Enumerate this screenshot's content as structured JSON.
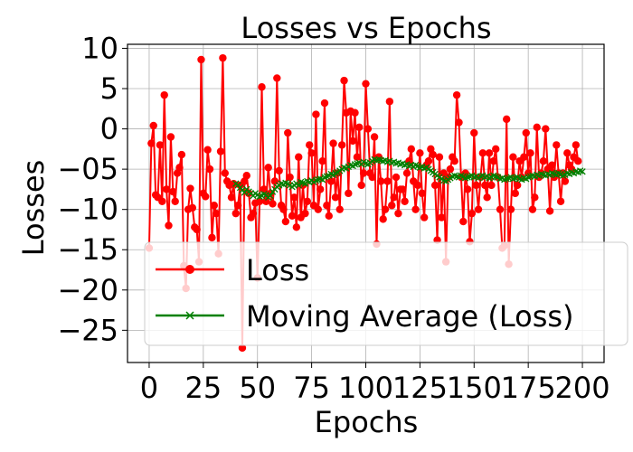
{
  "chart_data": {
    "type": "line",
    "title": "Losses vs Epochs",
    "xlabel": "Epochs",
    "ylabel": "Losses",
    "xlim": [
      -10,
      210
    ],
    "ylim": [
      -29,
      10.5
    ],
    "xticks": [
      0,
      25,
      50,
      75,
      100,
      125,
      150,
      175,
      200
    ],
    "xtick_labels": [
      "0",
      "25",
      "50",
      "75",
      "100",
      "125",
      "150",
      "175",
      "200"
    ],
    "yticks": [
      10,
      5,
      0,
      -5,
      -10,
      -15,
      -20,
      -25
    ],
    "ytick_labels": [
      "10",
      "5",
      "0",
      "−05",
      "−10",
      "−15",
      "−20",
      "−25"
    ],
    "grid": true,
    "legend_position": "lower-right",
    "colors": {
      "loss": "#ff0000",
      "moving_average": "#008000",
      "grid": "#b0b0b0"
    },
    "series": [
      {
        "name": "Loss",
        "marker": "circle",
        "x_start": 0,
        "values": [
          -14.8,
          -1.8,
          0.4,
          -8.2,
          -8.5,
          -2.0,
          -9.0,
          4.2,
          -7.5,
          -12.0,
          -1.0,
          -7.8,
          -9.0,
          -5.5,
          -4.8,
          -3.2,
          -17.0,
          -19.8,
          -10.0,
          -7.4,
          -9.8,
          -12.2,
          -12.5,
          -16.5,
          8.6,
          -8.0,
          -8.4,
          -2.6,
          -5.0,
          -13.5,
          -9.5,
          -10.5,
          -15.5,
          -2.8,
          8.8,
          -5.5,
          -6.5,
          -7.0,
          -8.5,
          -6.8,
          -10.5,
          -9.5,
          -7.0,
          -27.2,
          -6.5,
          -5.8,
          -8.0,
          -11.0,
          -10.5,
          -9.2,
          -18.5,
          -9.0,
          5.2,
          -7.5,
          -9.0,
          -4.8,
          -8.0,
          -9.3,
          -6.5,
          6.3,
          -5.2,
          -9.5,
          -10.0,
          -11.5,
          -0.5,
          -6.0,
          -10.8,
          -8.5,
          -12.2,
          -3.5,
          -11.0,
          -7.0,
          -10.5,
          -9.0,
          -2.0,
          -3.0,
          -9.5,
          1.8,
          -10.0,
          -7.5,
          -4.0,
          3.2,
          -9.5,
          -10.8,
          -6.5,
          -1.8,
          -8.5,
          -5.5,
          -10.0,
          -2.0,
          6.0,
          2.0,
          -8.0,
          2.2,
          -1.5,
          2.0,
          -3.5,
          0.2,
          -7.0,
          -5.5,
          5.6,
          0.0,
          -5.5,
          -6.0,
          -1.0,
          -14.3,
          -3.5,
          -6.5,
          -11.2,
          -10.0,
          -6.5,
          3.4,
          -9.5,
          -8.5,
          -6.0,
          -10.5,
          -7.5,
          -7.5,
          -9.0,
          -5.5,
          -4.0,
          -2.5,
          -6.5,
          -10.0,
          -7.0,
          -3.0,
          -8.0,
          -11.0,
          -4.5,
          -4.0,
          -2.5,
          -3.2,
          -7.0,
          -13.8,
          -3.5,
          -11.0,
          -5.5,
          -16.5,
          -6.0,
          -5.0,
          -3.5,
          -4.0,
          4.2,
          0.8,
          -6.0,
          -11.5,
          -5.5,
          -7.5,
          -14.0,
          -10.5,
          -0.5,
          -7.0,
          -10.0,
          -6.0,
          -3.0,
          -7.0,
          -8.5,
          -3.0,
          -7.0,
          -4.0,
          -2.5,
          -6.0,
          -10.0,
          -14.8,
          -14.5,
          1.2,
          -16.8,
          -10.0,
          -3.5,
          -8.0,
          -7.0,
          -4.0,
          -6.0,
          -3.5,
          -0.5,
          -5.5,
          -3.0,
          -10.0,
          -8.5,
          0.2,
          -6.0,
          -5.5,
          -4.0,
          0.0,
          -5.0,
          -10.2,
          -4.5,
          -6.0,
          -2.0,
          -5.5,
          -9.0,
          -5.5,
          -6.5,
          -3.0,
          -4.5,
          -5.0,
          -3.5,
          -2.0,
          -4.0
        ]
      },
      {
        "name": "Moving Average (Loss)",
        "marker": "x",
        "x_start": 40,
        "values": [
          -6.8,
          -7.0,
          -7.3,
          -7.6,
          -7.9,
          -7.5,
          -7.8,
          -8.0,
          -8.3,
          -8.0,
          -8.2,
          -8.4,
          -8.3,
          -8.1,
          -8.2,
          -8.5,
          -8.3,
          -7.8,
          -7.5,
          -7.2,
          -7.0,
          -6.8,
          -6.9,
          -6.7,
          -6.8,
          -7.0,
          -7.2,
          -7.0,
          -6.8,
          -7.0,
          -6.6,
          -6.7,
          -6.8,
          -6.5,
          -6.6,
          -6.4,
          -6.6,
          -6.4,
          -6.3,
          -6.2,
          -6.3,
          -6.0,
          -5.9,
          -5.8,
          -5.6,
          -5.7,
          -5.5,
          -5.4,
          -5.2,
          -5.0,
          -4.8,
          -4.9,
          -4.7,
          -4.5,
          -4.6,
          -4.4,
          -4.3,
          -4.2,
          -4.4,
          -4.1,
          -4.3,
          -4.4,
          -4.2,
          -4.0,
          -3.8,
          -3.9,
          -3.8,
          -3.9,
          -4.0,
          -3.9,
          -4.1,
          -4.0,
          -4.2,
          -4.1,
          -4.3,
          -4.2,
          -4.4,
          -4.3,
          -4.5,
          -4.4,
          -4.6,
          -4.5,
          -4.7,
          -4.5,
          -4.6,
          -4.8,
          -4.7,
          -4.9,
          -4.8,
          -5.0,
          -5.2,
          -5.4,
          -5.6,
          -5.8,
          -6.0,
          -6.2,
          -6.4,
          -6.5,
          -6.3,
          -6.1,
          -5.9,
          -5.8,
          -5.9,
          -6.0,
          -5.8,
          -5.9,
          -6.1,
          -6.0,
          -5.9,
          -5.8,
          -6.0,
          -5.9,
          -6.1,
          -5.9,
          -5.8,
          -6.0,
          -5.9,
          -6.1,
          -6.0,
          -5.8,
          -5.9,
          -6.0,
          -6.2,
          -6.1,
          -6.3,
          -6.2,
          -6.1,
          -6.0,
          -6.2,
          -6.1,
          -6.0,
          -6.2,
          -6.3,
          -6.1,
          -6.2,
          -6.0,
          -5.9,
          -5.8,
          -5.9,
          -5.7,
          -5.8,
          -5.6,
          -5.7,
          -5.8,
          -5.6,
          -5.7,
          -5.5,
          -5.6,
          -5.7,
          -5.5,
          -5.6,
          -5.8,
          -5.7,
          -5.5,
          -5.6,
          -5.4,
          -5.5,
          -5.3,
          -5.4,
          -5.2,
          -5.3
        ]
      }
    ]
  }
}
